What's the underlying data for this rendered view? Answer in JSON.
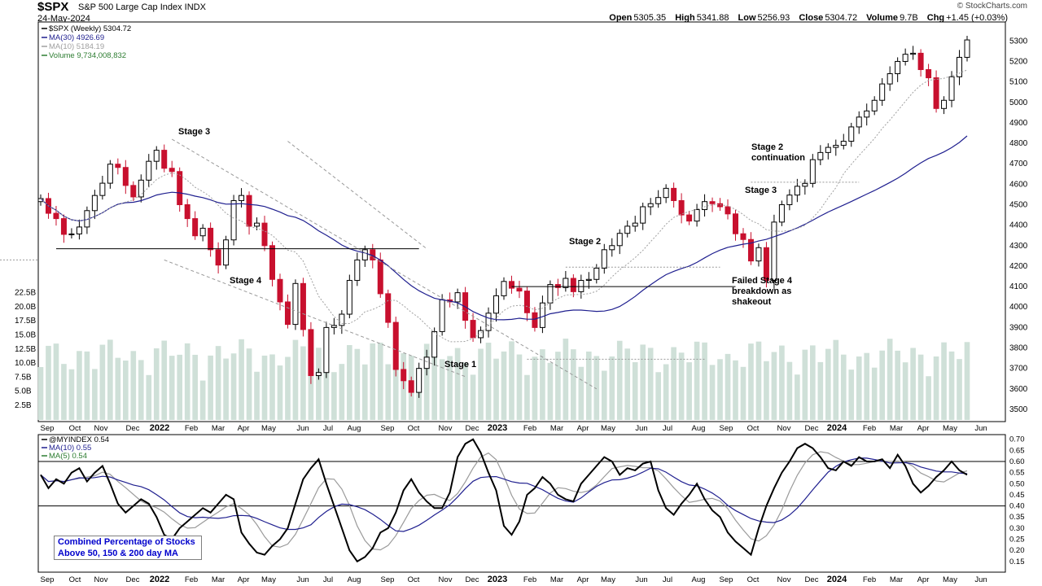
{
  "header": {
    "symbol": "$SPX",
    "description": "S&P 500 Large Cap Index INDX",
    "date": "24-May-2024",
    "credit": "© StockCharts.com",
    "ohlc": {
      "open_label": "Open",
      "open": "5305.35",
      "high_label": "High",
      "high": "5341.88",
      "low_label": "Low",
      "low": "5256.93",
      "close_label": "Close",
      "close": "5304.72",
      "volume_label": "Volume",
      "volume": "9.7B",
      "chg_label": "Chg",
      "chg": "+1.45 (+0.03%)"
    }
  },
  "colors": {
    "up": "#ffffff",
    "down": "#c8102e",
    "ma30": "#1f1f8f",
    "ma10": "#a0a0a0",
    "volume": "#cfe0d8",
    "ma5": "#9a9a9a"
  },
  "chart_data": [
    {
      "type": "candlestick",
      "legend": [
        {
          "label": "$SPX (Weekly) 5304.72",
          "color": "#000000"
        },
        {
          "label": "MA(30) 4926.69",
          "color": "#1f1f8f"
        },
        {
          "label": "MA(10) 5184.19",
          "color": "#a0a0a0"
        },
        {
          "label": "Volume 9,734,008,832",
          "color": "#2e7d32"
        }
      ],
      "y_ticks": [
        3500,
        3600,
        3700,
        3800,
        3900,
        4000,
        4100,
        4200,
        4300,
        4400,
        4500,
        4600,
        4700,
        4800,
        4900,
        5000,
        5100,
        5200,
        5300
      ],
      "ylim": [
        3480,
        5345
      ],
      "volume_ticks": [
        "2.5B",
        "5.0B",
        "7.5B",
        "10.0B",
        "12.5B",
        "15.0B",
        "17.5B",
        "20.0B",
        "22.5B"
      ],
      "x_labels": [
        "Sep",
        "Oct",
        "Nov",
        "Dec",
        "2022",
        "Feb",
        "Mar",
        "Apr",
        "May",
        "Jun",
        "Jul",
        "Aug",
        "Sep",
        "Oct",
        "Nov",
        "Dec",
        "2023",
        "Feb",
        "Mar",
        "Apr",
        "May",
        "Jun",
        "Jul",
        "Aug",
        "Sep",
        "Oct",
        "Nov",
        "Dec",
        "2024",
        "Feb",
        "Mar",
        "Apr",
        "May",
        "Jun"
      ],
      "close": [
        4530,
        4458,
        4432,
        4355,
        4357,
        4391,
        4471,
        4545,
        4605,
        4698,
        4682,
        4594,
        4538,
        4620,
        4712,
        4766,
        4678,
        4662,
        4500,
        4432,
        4348,
        4385,
        4280,
        4205,
        4328,
        4520,
        4545,
        4395,
        4410,
        4300,
        4135,
        4025,
        3915,
        4115,
        3890,
        3665,
        3680,
        3900,
        3910,
        3965,
        4130,
        4230,
        4280,
        4230,
        4065,
        3925,
        3695,
        3640,
        3583,
        3700,
        3755,
        3880,
        4035,
        4025,
        4070,
        3935,
        3850,
        3885,
        3970,
        4055,
        4125,
        4092,
        4078,
        3972,
        3900,
        4020,
        4110,
        4095,
        4140,
        4075,
        4130,
        4135,
        4190,
        4280,
        4300,
        4360,
        4395,
        4410,
        4490,
        4505,
        4535,
        4580,
        4520,
        4450,
        4420,
        4476,
        4515,
        4505,
        4490,
        4455,
        4358,
        4330,
        4225,
        4290,
        4130,
        4415,
        4500,
        4547,
        4590,
        4604,
        4720,
        4755,
        4780,
        4790,
        4810,
        4880,
        4928,
        4958,
        5010,
        5090,
        5140,
        5200,
        5235,
        5240,
        5160,
        5120,
        4970,
        5010,
        5125,
        5220,
        5305
      ],
      "annotations": [
        "Stage 3",
        "Stage 4",
        "Stage 1",
        "Stage 2",
        "Stage 3",
        "Stage 2 continuation",
        "Failed Stage 4 breakdown as shakeout"
      ]
    },
    {
      "type": "line",
      "legend": [
        {
          "label": "@MYINDEX 0.54",
          "color": "#000000"
        },
        {
          "label": "MA(10) 0.55",
          "color": "#1f1f8f"
        },
        {
          "label": "MA(5) 0.54",
          "color": "#2e7d32"
        }
      ],
      "y_ticks": [
        "0.70",
        "0.65",
        "0.60",
        "0.55",
        "0.50",
        "0.45",
        "0.40",
        "0.35",
        "0.30",
        "0.25",
        "0.20",
        "0.15"
      ],
      "ylim": [
        0.12,
        0.71
      ],
      "reference_lines": [
        0.6,
        0.4
      ],
      "values": [
        0.54,
        0.48,
        0.52,
        0.5,
        0.55,
        0.57,
        0.51,
        0.55,
        0.58,
        0.5,
        0.41,
        0.37,
        0.4,
        0.43,
        0.41,
        0.35,
        0.27,
        0.25,
        0.3,
        0.33,
        0.36,
        0.39,
        0.37,
        0.41,
        0.45,
        0.43,
        0.28,
        0.23,
        0.19,
        0.18,
        0.22,
        0.25,
        0.3,
        0.41,
        0.52,
        0.57,
        0.61,
        0.5,
        0.4,
        0.3,
        0.2,
        0.15,
        0.17,
        0.21,
        0.28,
        0.3,
        0.37,
        0.47,
        0.52,
        0.46,
        0.42,
        0.39,
        0.39,
        0.46,
        0.62,
        0.68,
        0.7,
        0.64,
        0.55,
        0.47,
        0.31,
        0.27,
        0.33,
        0.45,
        0.48,
        0.53,
        0.5,
        0.45,
        0.43,
        0.42,
        0.5,
        0.54,
        0.58,
        0.62,
        0.6,
        0.54,
        0.57,
        0.56,
        0.59,
        0.6,
        0.47,
        0.39,
        0.36,
        0.41,
        0.45,
        0.5,
        0.43,
        0.38,
        0.35,
        0.28,
        0.24,
        0.21,
        0.18,
        0.3,
        0.4,
        0.48,
        0.55,
        0.6,
        0.66,
        0.68,
        0.66,
        0.62,
        0.57,
        0.56,
        0.6,
        0.58,
        0.62,
        0.6,
        0.6,
        0.61,
        0.57,
        0.63,
        0.58,
        0.5,
        0.46,
        0.49,
        0.53,
        0.56,
        0.6,
        0.56,
        0.54
      ]
    }
  ],
  "note": {
    "line1": "Combined Percentage of Stocks",
    "line2": "Above 50, 150 & 200 day MA"
  }
}
